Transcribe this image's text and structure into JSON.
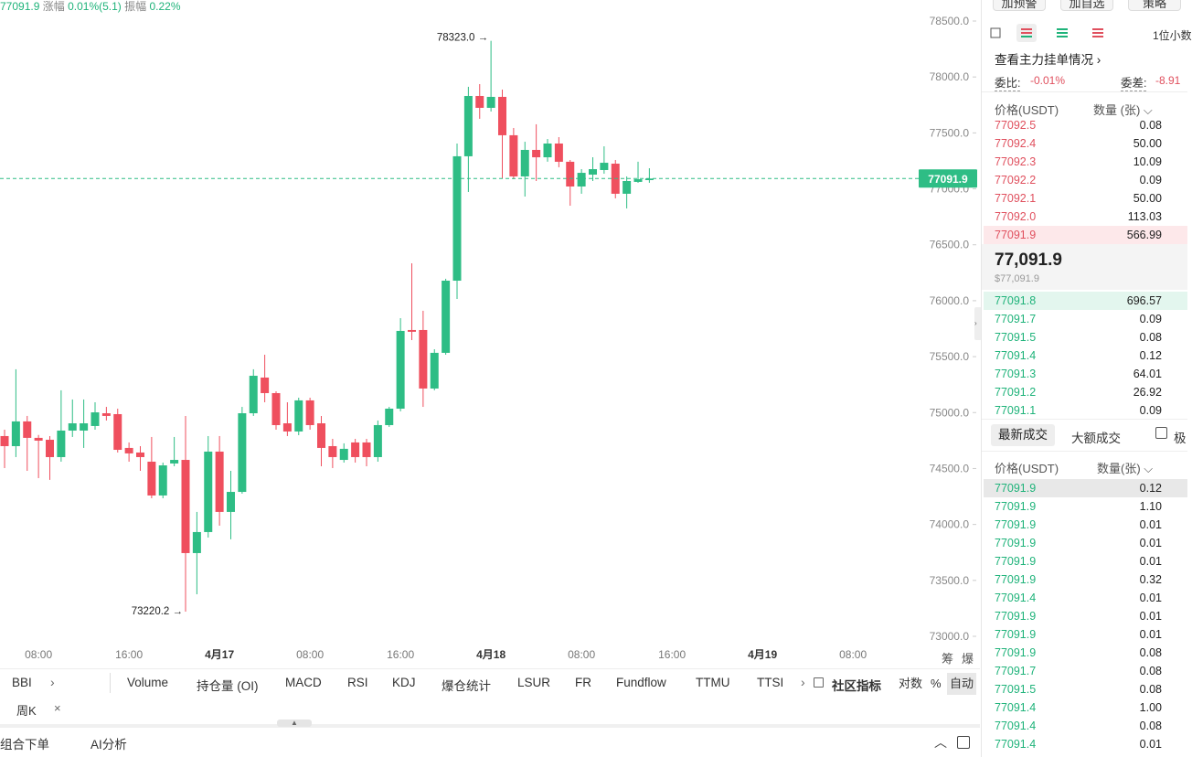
{
  "header": {
    "price": "77091.9",
    "change_label": "涨幅",
    "change": "0.01%(5.1)",
    "amplitude_label": "振幅",
    "amplitude": "0.22%"
  },
  "chart_data": {
    "type": "candlestick",
    "up_color": "#2ebd85",
    "down_color": "#ef4f5e",
    "ylim": [
      73000,
      78500
    ],
    "yticks": [
      {
        "value": 73000,
        "label": "73000.0"
      },
      {
        "value": 73500,
        "label": "73500.0"
      },
      {
        "value": 74000,
        "label": "74000.0"
      },
      {
        "value": 74500,
        "label": "74500.0"
      },
      {
        "value": 75000,
        "label": "75000.0"
      },
      {
        "value": 75500,
        "label": "75500.0"
      },
      {
        "value": 76000,
        "label": "76000.0"
      },
      {
        "value": 76500,
        "label": "76500.0"
      },
      {
        "value": 77000,
        "label": "77000.0"
      },
      {
        "value": 77500,
        "label": "77500.0"
      },
      {
        "value": 78000,
        "label": "78000.0"
      },
      {
        "value": 78500,
        "label": "78500.0"
      }
    ],
    "xticks": [
      {
        "value": 3,
        "label": "08:00"
      },
      {
        "value": 11,
        "label": "16:00"
      },
      {
        "value": 19,
        "label": "4月17"
      },
      {
        "value": 27,
        "label": "08:00"
      },
      {
        "value": 35,
        "label": "16:00"
      },
      {
        "value": 43,
        "label": "4月18"
      },
      {
        "value": 51,
        "label": "08:00"
      },
      {
        "value": 59,
        "label": "16:00"
      },
      {
        "value": 67,
        "label": "4月19"
      },
      {
        "value": 75,
        "label": "08:00"
      }
    ],
    "high_label": "78323.0 →",
    "low_label": "73220.2 →",
    "last_price_label": "77091.9",
    "candles": [
      {
        "open": 74790,
        "high": 74847,
        "low": 74504,
        "close": 74700
      },
      {
        "open": 74700,
        "high": 75387,
        "low": 74602,
        "close": 74921
      },
      {
        "open": 74921,
        "high": 74970,
        "low": 74479,
        "close": 74774
      },
      {
        "open": 74774,
        "high": 74800,
        "low": 74414,
        "close": 74749
      },
      {
        "open": 74757,
        "high": 74790,
        "low": 74398,
        "close": 74602
      },
      {
        "open": 74602,
        "high": 75199,
        "low": 74561,
        "close": 74839
      },
      {
        "open": 74839,
        "high": 75117,
        "low": 74782,
        "close": 74904
      },
      {
        "open": 74839,
        "high": 75117,
        "low": 74684,
        "close": 74904
      },
      {
        "open": 74880,
        "high": 75092,
        "low": 74847,
        "close": 75002
      },
      {
        "open": 74994,
        "high": 75051,
        "low": 74929,
        "close": 74970
      },
      {
        "open": 74986,
        "high": 75035,
        "low": 74643,
        "close": 74667
      },
      {
        "open": 74684,
        "high": 74733,
        "low": 74561,
        "close": 74635
      },
      {
        "open": 74643,
        "high": 74700,
        "low": 74479,
        "close": 74602
      },
      {
        "open": 74561,
        "high": 74782,
        "low": 74234,
        "close": 74259
      },
      {
        "open": 74259,
        "high": 74553,
        "low": 74234,
        "close": 74528
      },
      {
        "open": 74545,
        "high": 74782,
        "low": 74520,
        "close": 74577
      },
      {
        "open": 74577,
        "high": 74970,
        "low": 73220.2,
        "close": 73744
      },
      {
        "open": 73744,
        "high": 74112,
        "low": 73376,
        "close": 73932
      },
      {
        "open": 73932,
        "high": 74790,
        "low": 73883,
        "close": 74651
      },
      {
        "open": 74651,
        "high": 74790,
        "low": 73989,
        "close": 74112
      },
      {
        "open": 74112,
        "high": 74479,
        "low": 73867,
        "close": 74291
      },
      {
        "open": 74291,
        "high": 75051,
        "low": 74275,
        "close": 74994
      },
      {
        "open": 74994,
        "high": 75387,
        "low": 74970,
        "close": 75329
      },
      {
        "open": 75313,
        "high": 75517,
        "low": 75092,
        "close": 75174
      },
      {
        "open": 75174,
        "high": 75190,
        "low": 74847,
        "close": 74888
      },
      {
        "open": 74904,
        "high": 75092,
        "low": 74790,
        "close": 74831
      },
      {
        "open": 74831,
        "high": 75133,
        "low": 74798,
        "close": 75109
      },
      {
        "open": 75109,
        "high": 75133,
        "low": 74847,
        "close": 74888
      },
      {
        "open": 74904,
        "high": 74970,
        "low": 74520,
        "close": 74684
      },
      {
        "open": 74700,
        "high": 74765,
        "low": 74504,
        "close": 74602
      },
      {
        "open": 74577,
        "high": 74725,
        "low": 74553,
        "close": 74676
      },
      {
        "open": 74733,
        "high": 74765,
        "low": 74553,
        "close": 74602
      },
      {
        "open": 74733,
        "high": 74765,
        "low": 74520,
        "close": 74602
      },
      {
        "open": 74602,
        "high": 74929,
        "low": 74561,
        "close": 74888
      },
      {
        "open": 74888,
        "high": 75051,
        "low": 74872,
        "close": 75035
      },
      {
        "open": 75035,
        "high": 75844,
        "low": 75011,
        "close": 75730
      },
      {
        "open": 75738,
        "high": 76334,
        "low": 75648,
        "close": 75722
      },
      {
        "open": 75738,
        "high": 75910,
        "low": 75051,
        "close": 75215
      },
      {
        "open": 75215,
        "high": 75566,
        "low": 75199,
        "close": 75534
      },
      {
        "open": 75534,
        "high": 76196,
        "low": 75517,
        "close": 76179
      },
      {
        "open": 76179,
        "high": 77405,
        "low": 76016,
        "close": 77291
      },
      {
        "open": 77291,
        "high": 77912,
        "low": 76972,
        "close": 77830
      },
      {
        "open": 77830,
        "high": 77936,
        "low": 77626,
        "close": 77724
      },
      {
        "open": 77724,
        "high": 78323,
        "low": 77691,
        "close": 77822
      },
      {
        "open": 77822,
        "high": 77887,
        "low": 77094,
        "close": 77479
      },
      {
        "open": 77479,
        "high": 77544,
        "low": 77086,
        "close": 77111
      },
      {
        "open": 77111,
        "high": 77421,
        "low": 76931,
        "close": 77348
      },
      {
        "open": 77348,
        "high": 77577,
        "low": 77070,
        "close": 77282
      },
      {
        "open": 77282,
        "high": 77446,
        "low": 77242,
        "close": 77405
      },
      {
        "open": 77405,
        "high": 77462,
        "low": 77193,
        "close": 77242
      },
      {
        "open": 77242,
        "high": 77258,
        "low": 76849,
        "close": 77021
      },
      {
        "open": 77021,
        "high": 77176,
        "low": 76956,
        "close": 77143
      },
      {
        "open": 77127,
        "high": 77282,
        "low": 77070,
        "close": 77176
      },
      {
        "open": 77168,
        "high": 77380,
        "low": 77135,
        "close": 77233
      },
      {
        "open": 77225,
        "high": 77258,
        "low": 76915,
        "close": 76956
      },
      {
        "open": 76956,
        "high": 77111,
        "low": 76825,
        "close": 77070
      },
      {
        "open": 77062,
        "high": 77242,
        "low": 77054,
        "close": 77086
      },
      {
        "open": 77078,
        "high": 77184,
        "low": 77054,
        "close": 77091.9
      }
    ]
  },
  "axis_extra": [
    "筹",
    "爆"
  ],
  "indicator_bar": {
    "items": [
      "BBI",
      "Volume",
      "持仓量 (OI)",
      "MACD",
      "RSI",
      "KDJ",
      "爆仓统计",
      "LSUR",
      "FR",
      "Fundflow",
      "TTMU",
      "TTSI",
      "社区指标"
    ],
    "tags": [
      "对数",
      "%",
      "自动"
    ]
  },
  "period_tab": {
    "label": "周K",
    "close": "×"
  },
  "bottom_bar": {
    "items": [
      "组合下单",
      "AI分析"
    ]
  },
  "order_panel": {
    "buttons": [
      "加预警",
      "加自选",
      "策略"
    ],
    "precision": "1位小数",
    "main_orders": "查看主力挂单情况",
    "ratio_label": "委比:",
    "ratio": "-0.01%",
    "diff_label": "委差:",
    "diff": "-8.91",
    "book_headers": [
      "价格(USDT)",
      "数量 (张)"
    ],
    "asks": [
      [
        "77092.5",
        "0.08"
      ],
      [
        "77092.4",
        "50.00"
      ],
      [
        "77092.3",
        "10.09"
      ],
      [
        "77092.2",
        "0.09"
      ],
      [
        "77092.1",
        "50.00"
      ],
      [
        "77092.0",
        "113.03"
      ],
      [
        "77091.9",
        "566.99"
      ]
    ],
    "last_price": "77,091.9",
    "last_price_usd": "$77,091.9",
    "bids": [
      [
        "77091.8",
        "696.57"
      ],
      [
        "77091.7",
        "0.09"
      ],
      [
        "77091.5",
        "0.08"
      ],
      [
        "77091.4",
        "0.12"
      ],
      [
        "77091.3",
        "64.01"
      ],
      [
        "77091.2",
        "26.92"
      ],
      [
        "77091.1",
        "0.09"
      ]
    ],
    "trade_tabs": [
      "最新成交",
      "大额成交",
      "极"
    ],
    "trade_headers": [
      "价格(USDT)",
      "数量(张)"
    ],
    "trades": [
      [
        "77091.9",
        "0.12"
      ],
      [
        "77091.9",
        "1.10"
      ],
      [
        "77091.9",
        "0.01"
      ],
      [
        "77091.9",
        "0.01"
      ],
      [
        "77091.9",
        "0.01"
      ],
      [
        "77091.9",
        "0.32"
      ],
      [
        "77091.4",
        "0.01"
      ],
      [
        "77091.9",
        "0.01"
      ],
      [
        "77091.9",
        "0.01"
      ],
      [
        "77091.9",
        "0.08"
      ],
      [
        "77091.7",
        "0.08"
      ],
      [
        "77091.5",
        "0.08"
      ],
      [
        "77091.4",
        "1.00"
      ],
      [
        "77091.4",
        "0.08"
      ],
      [
        "77091.4",
        "0.01"
      ]
    ]
  }
}
